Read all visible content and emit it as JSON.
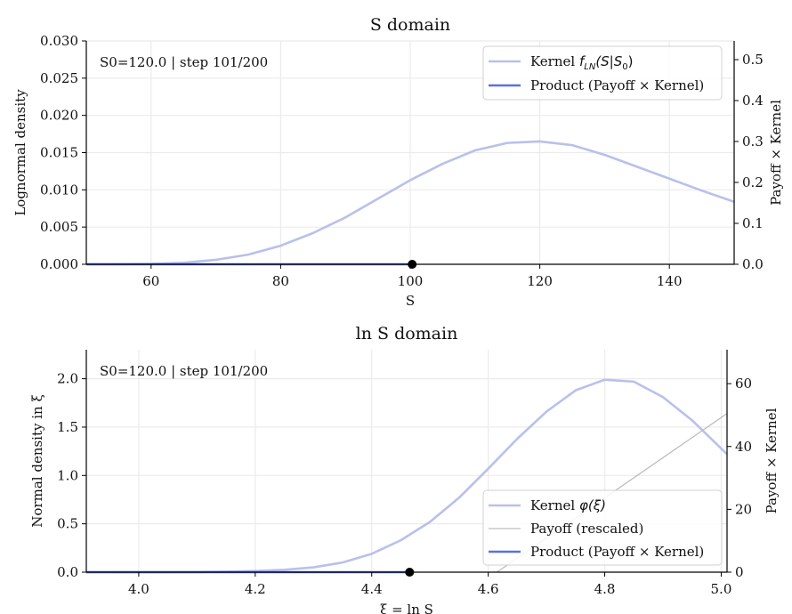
{
  "colors": {
    "kernel": "#b9c0ea",
    "product": "#5a70e0",
    "payoff": "#bdbdbd",
    "grid": "#ebebeb",
    "axis": "#000000",
    "marker": "#000000"
  },
  "chart_data": [
    {
      "type": "line",
      "title": "S domain",
      "xlabel": "S",
      "ylabel": "Lognormal density",
      "y2label": "Payoff × Kernel",
      "annotation": "S0=120.0 | step 101/200",
      "xlim": [
        50,
        150
      ],
      "ylim": [
        0,
        0.03
      ],
      "y2lim": [
        0,
        0.5457
      ],
      "xticks": [
        60,
        80,
        100,
        120,
        140
      ],
      "xtick_labels": [
        "60",
        "80",
        "100",
        "120",
        "140"
      ],
      "yticks": [
        0,
        0.005,
        0.01,
        0.015,
        0.02,
        0.025,
        0.03
      ],
      "ytick_labels": [
        "0.000",
        "0.005",
        "0.010",
        "0.015",
        "0.020",
        "0.025",
        "0.030"
      ],
      "y2ticks": [
        0,
        0.1,
        0.2,
        0.3,
        0.4,
        0.5
      ],
      "y2tick_labels": [
        "0.0",
        "0.1",
        "0.2",
        "0.3",
        "0.4",
        "0.5"
      ],
      "marker": {
        "x": 100.3,
        "y": 0
      },
      "legend": {
        "placement": "top-right",
        "entries": [
          {
            "pre": "Kernel ",
            "math": "f",
            "sub": "LN",
            "post": "(S|S",
            "sub2": "0",
            "end": ")",
            "series": "kernel"
          },
          {
            "pre": "Product (Payoff × Kernel)",
            "series": "product"
          }
        ]
      },
      "series": [
        {
          "name": "Kernel",
          "axis": "left",
          "x": [
            50,
            55,
            60,
            65,
            70,
            75,
            80,
            85,
            90,
            95,
            100,
            105,
            110,
            115,
            120,
            125,
            130,
            135,
            140,
            145,
            150
          ],
          "y": [
            0.0,
            1e-05,
            5e-05,
            0.0002,
            0.0006,
            0.0013,
            0.0025,
            0.0042,
            0.0063,
            0.0088,
            0.0113,
            0.0135,
            0.0153,
            0.0163,
            0.0165,
            0.016,
            0.0147,
            0.0131,
            0.0115,
            0.0099,
            0.0084
          ]
        },
        {
          "name": "Product (Payoff × Kernel)",
          "axis": "right",
          "x": [
            50,
            100.3
          ],
          "y": [
            0,
            0
          ]
        }
      ]
    },
    {
      "type": "line",
      "title": "ln S domain",
      "xlabel": "ξ = ln S",
      "ylabel": "Normal density in ξ",
      "y2label": "Payoff × Kernel",
      "annotation": "S0=120.0 | step 101/200",
      "xlim": [
        3.91,
        5.01
      ],
      "ylim": [
        0,
        2.3
      ],
      "y2lim": [
        0,
        70.8
      ],
      "xticks": [
        4.0,
        4.2,
        4.4,
        4.6,
        4.8,
        5.0
      ],
      "xtick_labels": [
        "4.0",
        "4.2",
        "4.4",
        "4.6",
        "4.8",
        "5.0"
      ],
      "yticks": [
        0,
        0.5,
        1.0,
        1.5,
        2.0
      ],
      "ytick_labels": [
        "0.0",
        "0.5",
        "1.0",
        "1.5",
        "2.0"
      ],
      "y2ticks": [
        0,
        20,
        40,
        60
      ],
      "y2tick_labels": [
        "0",
        "20",
        "40",
        "60"
      ],
      "marker": {
        "x": 4.465,
        "y": 0
      },
      "legend": {
        "placement": "lower-right",
        "entries": [
          {
            "pre": "Kernel ",
            "math": "φ",
            "post": "(ξ)",
            "series": "kernel"
          },
          {
            "pre": "Payoff (rescaled)",
            "series": "payoff"
          },
          {
            "pre": "Product (Payoff × Kernel)",
            "series": "product"
          }
        ]
      },
      "series": [
        {
          "name": "Kernel",
          "axis": "left",
          "x": [
            3.91,
            3.95,
            4.0,
            4.05,
            4.1,
            4.15,
            4.2,
            4.25,
            4.3,
            4.35,
            4.4,
            4.45,
            4.5,
            4.55,
            4.6,
            4.65,
            4.7,
            4.75,
            4.8,
            4.85,
            4.9,
            4.95,
            5.01
          ],
          "y": [
            0.0,
            0.0,
            0.0005,
            0.001,
            0.002,
            0.005,
            0.012,
            0.025,
            0.05,
            0.1,
            0.19,
            0.33,
            0.52,
            0.77,
            1.07,
            1.38,
            1.66,
            1.88,
            1.99,
            1.97,
            1.81,
            1.57,
            1.22
          ]
        },
        {
          "name": "Payoff (rescaled)",
          "axis": "right",
          "x": [
            4.615,
            5.01
          ],
          "y": [
            0,
            50.5
          ]
        },
        {
          "name": "Product (Payoff × Kernel)",
          "axis": "right",
          "x": [
            3.91,
            4.465
          ],
          "y": [
            0,
            0
          ]
        }
      ]
    }
  ]
}
